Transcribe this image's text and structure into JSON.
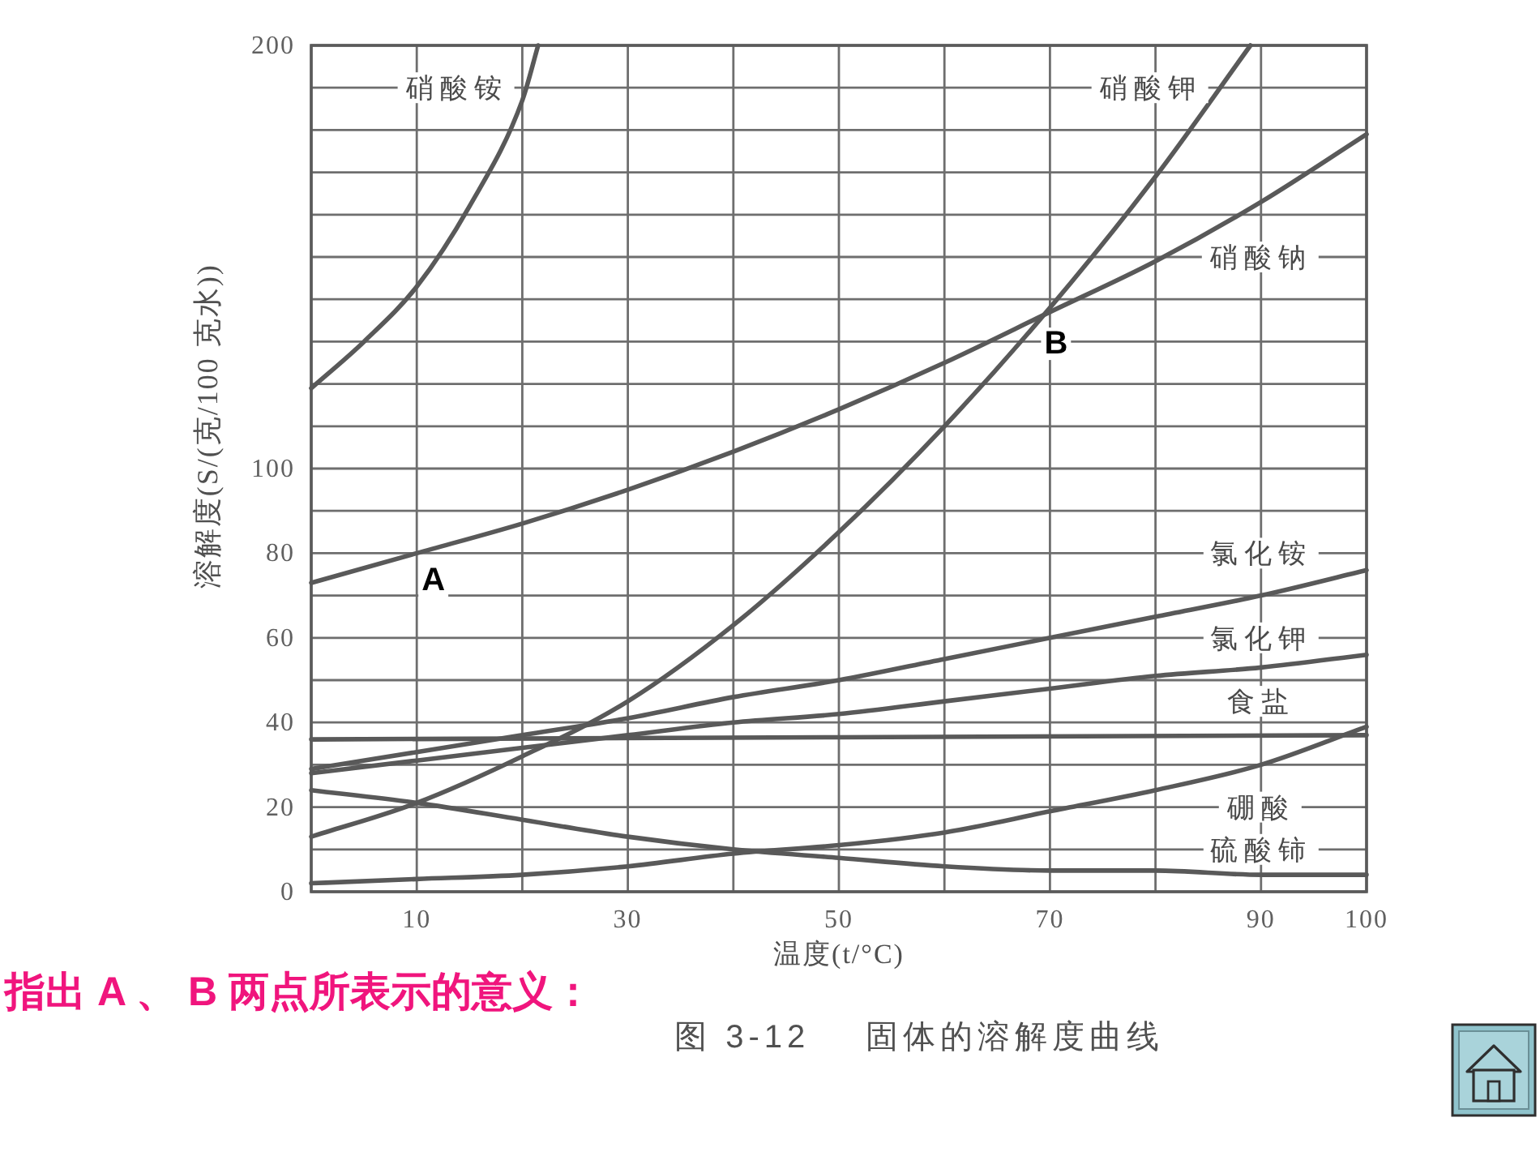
{
  "chart_data": {
    "type": "line",
    "title": "图 3-12    固体的溶解度曲线",
    "xlabel": "温度(t/°C)",
    "ylabel": "溶解度(S/(克/100 克水))",
    "xlim": [
      0,
      100
    ],
    "ylim": [
      0,
      200
    ],
    "xticks": [
      {
        "value": 0,
        "label": null
      },
      10,
      {
        "value": 20,
        "label": null
      },
      30,
      {
        "value": 40,
        "label": null
      },
      50,
      {
        "value": 60,
        "label": null
      },
      70,
      {
        "value": 80,
        "label": null
      },
      90,
      100
    ],
    "yticks": [
      0,
      {
        "value": 10,
        "label": null
      },
      20,
      {
        "value": 30,
        "label": null
      },
      40,
      {
        "value": 50,
        "label": null
      },
      60,
      {
        "value": 70,
        "label": null
      },
      80,
      {
        "value": 90,
        "label": null
      },
      100,
      {
        "value": 110,
        "label": null
      },
      {
        "value": 120,
        "label": null
      },
      {
        "value": 130,
        "label": null
      },
      {
        "value": 140,
        "label": null
      },
      {
        "value": 150,
        "label": null
      },
      {
        "value": 160,
        "label": null
      },
      {
        "value": 170,
        "label": null
      },
      {
        "value": 180,
        "label": null
      },
      {
        "value": 190,
        "label": null
      },
      200
    ],
    "grid": true,
    "line_style": "solid",
    "series": [
      {
        "name": "硝酸铵",
        "color": "#595959",
        "x": [
          0,
          5,
          10,
          15,
          20,
          21.5
        ],
        "values": [
          119,
          130,
          143,
          162,
          187,
          200
        ]
      },
      {
        "name": "硝酸钾",
        "color": "#595959",
        "x": [
          0,
          10,
          20,
          30,
          40,
          50,
          60,
          70,
          80,
          89
        ],
        "values": [
          13,
          21,
          32,
          45,
          63,
          85,
          110,
          138,
          169,
          200
        ]
      },
      {
        "name": "硝酸钠",
        "color": "#595959",
        "x": [
          0,
          10,
          20,
          30,
          40,
          50,
          60,
          70,
          80,
          90,
          100
        ],
        "values": [
          73,
          80,
          87,
          95,
          104,
          114,
          125,
          137,
          149,
          163,
          179
        ]
      },
      {
        "name": "氯化铵",
        "color": "#595959",
        "x": [
          0,
          10,
          20,
          30,
          40,
          50,
          60,
          70,
          80,
          90,
          100
        ],
        "values": [
          29,
          33,
          37,
          41,
          46,
          50,
          55,
          60,
          65,
          70,
          76
        ]
      },
      {
        "name": "氯化钾",
        "color": "#595959",
        "x": [
          0,
          10,
          20,
          30,
          40,
          50,
          60,
          70,
          80,
          90,
          100
        ],
        "values": [
          28,
          31,
          34,
          37,
          40,
          42,
          45,
          48,
          51,
          53,
          56
        ]
      },
      {
        "name": "食盐",
        "color": "#595959",
        "x": [
          0,
          100
        ],
        "values": [
          36,
          37
        ]
      },
      {
        "name": "硼酸",
        "color": "#595959",
        "x": [
          0,
          10,
          20,
          30,
          40,
          50,
          60,
          70,
          80,
          90,
          100
        ],
        "values": [
          2,
          3,
          4,
          6,
          9,
          11,
          14,
          19,
          24,
          30,
          39
        ]
      },
      {
        "name": "硫酸铈",
        "color": "#595959",
        "x": [
          0,
          10,
          20,
          30,
          40,
          50,
          60,
          70,
          80,
          90,
          100
        ],
        "values": [
          24,
          21,
          17,
          13,
          10,
          8,
          6,
          5,
          5,
          4,
          4
        ]
      }
    ],
    "annotations": [
      {
        "text": "A",
        "x": 10,
        "y": 80
      },
      {
        "text": "B",
        "x": 69,
        "y": 136
      },
      "指出 A 、 B 两点所表示的意义："
    ]
  }
}
